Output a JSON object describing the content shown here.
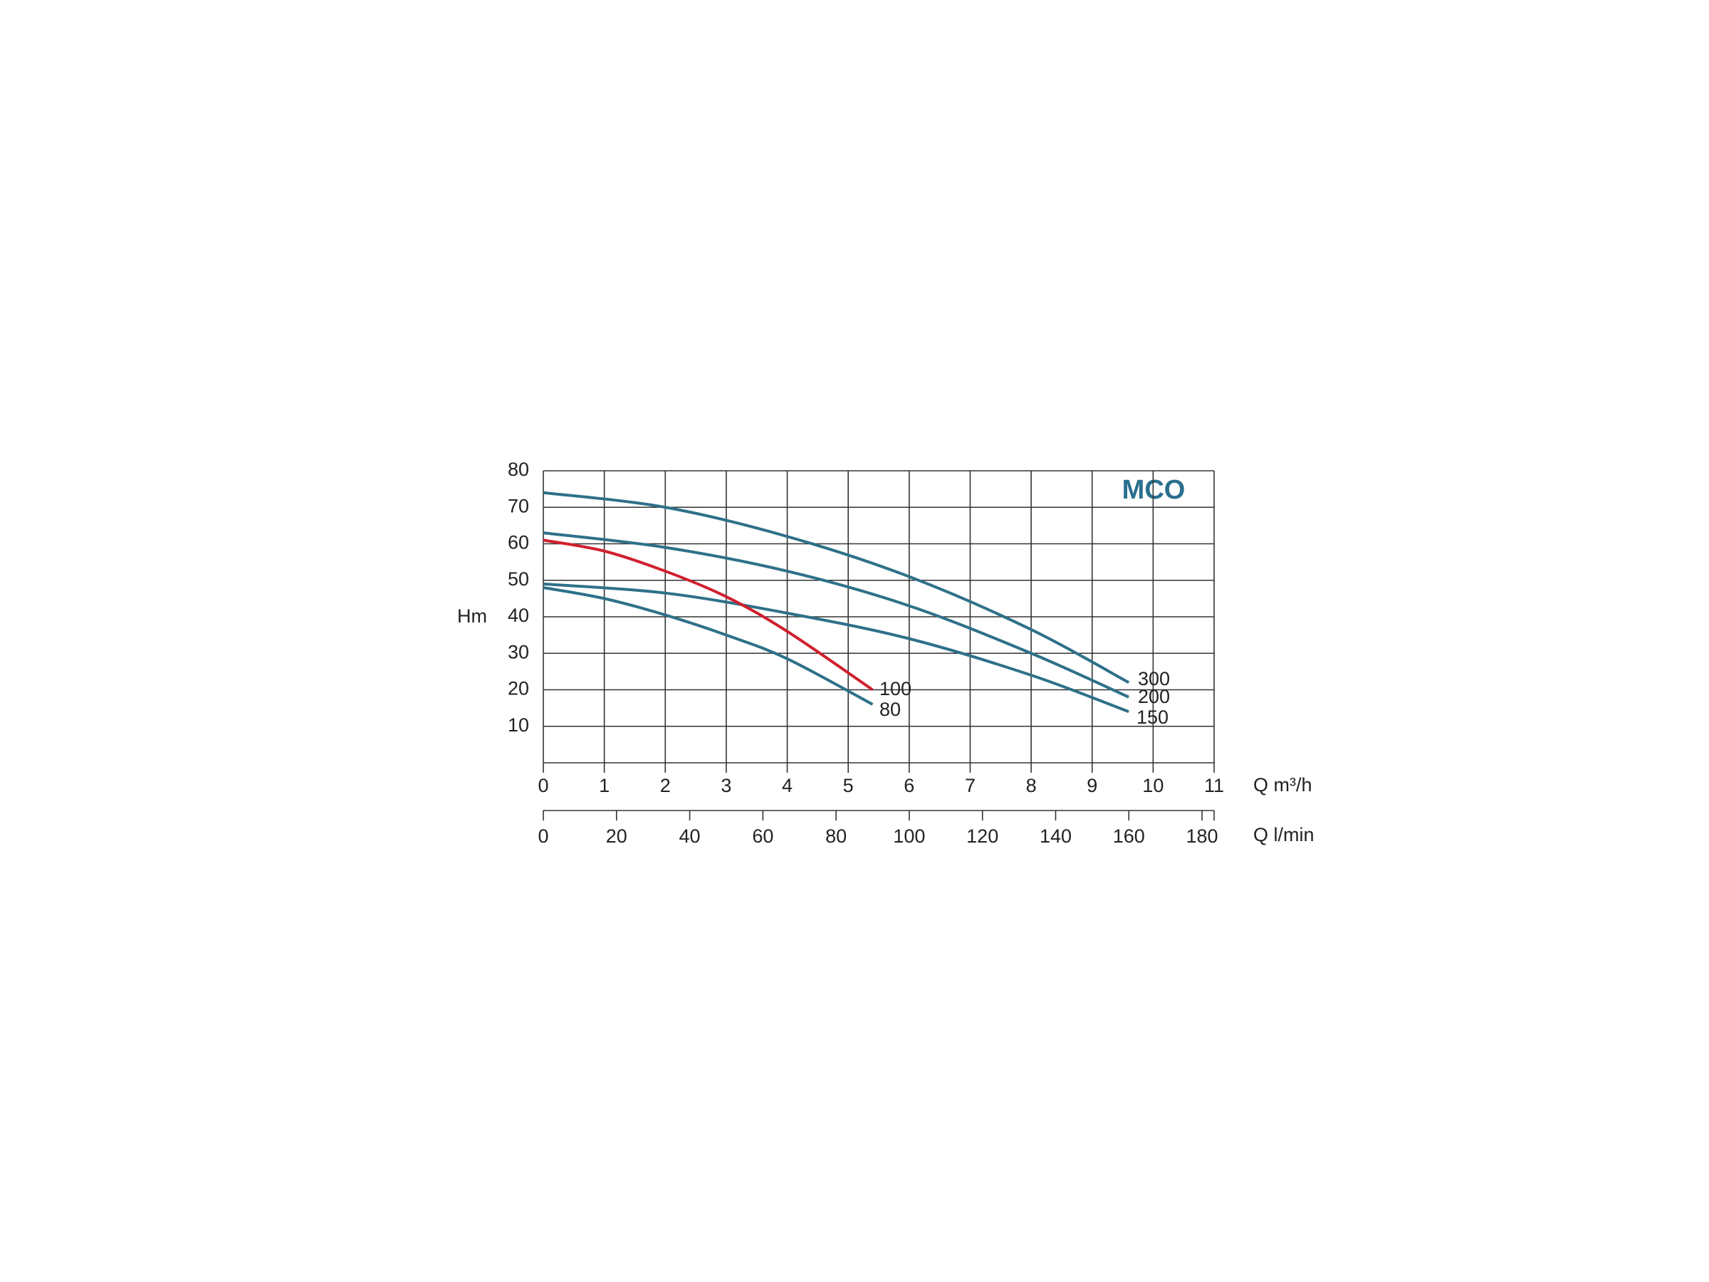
{
  "chart_data": {
    "type": "line",
    "title": "MCO",
    "y_label": "Hm",
    "x_label": "Q m³/h",
    "x2_label": "Q l/min",
    "xlim": [
      0,
      11
    ],
    "xticks": [
      0,
      1,
      2,
      3,
      4,
      5,
      6,
      7,
      8,
      9,
      10,
      11
    ],
    "x2lim": [
      0,
      183.3
    ],
    "x2ticks": [
      0,
      20,
      40,
      60,
      80,
      100,
      120,
      140,
      160,
      180
    ],
    "ylim": [
      0,
      80
    ],
    "yticks": [
      10,
      20,
      30,
      40,
      50,
      60,
      70,
      80
    ],
    "grid": true,
    "series": [
      {
        "name": "300",
        "color": "#2e7089",
        "x": [
          0,
          2,
          4,
          6,
          8,
          9.6
        ],
        "values": [
          74,
          70,
          62,
          51,
          36.5,
          22
        ]
      },
      {
        "name": "200",
        "color": "#2e7089",
        "x": [
          0,
          2,
          4,
          6,
          8,
          9.6
        ],
        "values": [
          63,
          59,
          52.5,
          43,
          30,
          18
        ]
      },
      {
        "name": "150",
        "color": "#2e7089",
        "x": [
          0,
          2,
          4,
          6,
          8,
          9.6
        ],
        "values": [
          49,
          46.5,
          41,
          34,
          24,
          14
        ]
      },
      {
        "name": "100",
        "color": "#d0202e",
        "x": [
          0,
          1,
          2,
          3,
          4,
          5.4
        ],
        "values": [
          61,
          58,
          52.5,
          45.5,
          36,
          20
        ]
      },
      {
        "name": "80",
        "color": "#2e7089",
        "x": [
          0,
          1,
          2,
          3,
          4,
          5.4
        ],
        "values": [
          48,
          45,
          40.5,
          35,
          28.5,
          16
        ]
      }
    ]
  }
}
